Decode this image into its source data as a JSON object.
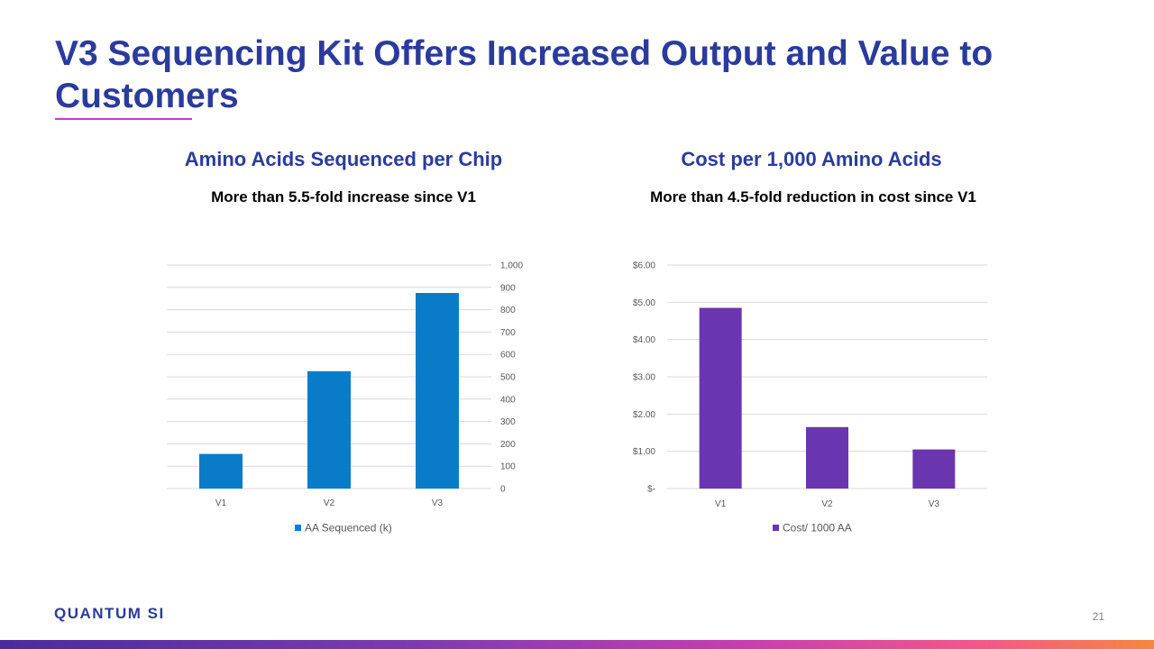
{
  "slide": {
    "title": "V3 Sequencing Kit Offers Increased Output and Value to Customers",
    "page_number": "21",
    "logo_text": "QUANTUM SI"
  },
  "colors": {
    "title": "#2B3B9B",
    "accent_line": "#C23FBE",
    "bar_left": "#0A7CC7",
    "bar_right": "#6A36B0"
  },
  "chart_data": [
    {
      "type": "bar",
      "title": "Amino Acids Sequenced per Chip",
      "subtitle": "More than 5.5-fold increase since V1",
      "categories": [
        "V1",
        "V2",
        "V3"
      ],
      "series": [
        {
          "name": "AA Sequenced (k)",
          "values": [
            155,
            525,
            875
          ]
        }
      ],
      "ylim": [
        0,
        1000
      ],
      "yticks": [
        0,
        100,
        200,
        300,
        400,
        500,
        600,
        700,
        800,
        900,
        1000
      ],
      "ytick_labels": [
        "0",
        "100",
        "200",
        "300",
        "400",
        "500",
        "600",
        "700",
        "800",
        "900",
        "1,000"
      ],
      "y_axis_side": "right",
      "grid": true,
      "legend": "bottom"
    },
    {
      "type": "bar",
      "title": "Cost per 1,000 Amino Acids",
      "subtitle": "More than 4.5-fold reduction in cost since V1",
      "categories": [
        "V1",
        "V2",
        "V3"
      ],
      "series": [
        {
          "name": "Cost/ 1000 AA",
          "values": [
            4.85,
            1.65,
            1.05
          ]
        }
      ],
      "ylim": [
        0,
        6
      ],
      "yticks": [
        0,
        1,
        2,
        3,
        4,
        5,
        6
      ],
      "ytick_labels": [
        "$-",
        "$1.00",
        "$2.00",
        "$3.00",
        "$4.00",
        "$5.00",
        "$6.00"
      ],
      "y_axis_side": "left",
      "grid": true,
      "legend": "bottom"
    }
  ]
}
